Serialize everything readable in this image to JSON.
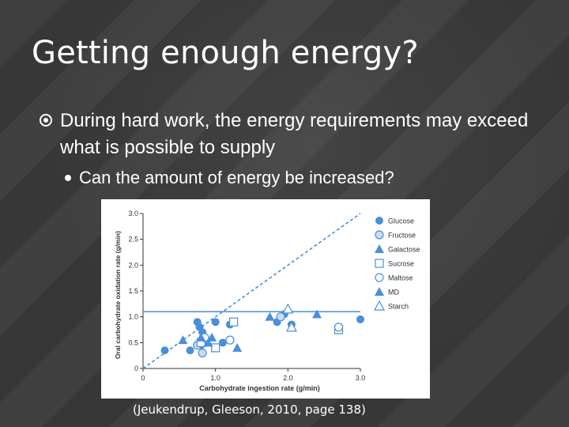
{
  "slide": {
    "title": "Getting enough energy?",
    "bullet1": "During hard work, the energy requirements may exceed what is possible to supply",
    "bullet2": "Can the amount of energy be increased?",
    "citation": "(Jeukendrup, Gleeson, 2010, page 138)"
  },
  "colors": {
    "background": "#3a3a3a",
    "text": "#ffffff",
    "marker": "#4a8fd8",
    "marker_light": "#c7dcf3",
    "axis": "#333333"
  },
  "chart_data": {
    "type": "scatter",
    "xlabel": "Carbohydrate ingestion rate (g/min)",
    "ylabel": "Oral carbohydrate oxidation rate (g/min)",
    "xlim": [
      0,
      3.0
    ],
    "ylim": [
      0,
      3.0
    ],
    "xticks": [
      "0",
      "1.0",
      "2.0",
      "3.0"
    ],
    "yticks": [
      "0",
      "0.5",
      "1.0",
      "1.5",
      "2.0",
      "2.5",
      "3.0"
    ],
    "grid": false,
    "legend_position": "right",
    "reference_lines": [
      {
        "kind": "identity",
        "style": "dashed",
        "from": [
          0,
          0
        ],
        "to": [
          3.0,
          3.0
        ]
      },
      {
        "kind": "horizontal",
        "style": "solid",
        "y": 1.1
      }
    ],
    "series": [
      {
        "name": "Glucose",
        "marker": "circle-filled",
        "points": [
          [
            0.3,
            0.35
          ],
          [
            0.75,
            0.9
          ],
          [
            0.78,
            0.8
          ],
          [
            0.82,
            0.7
          ],
          [
            0.85,
            0.55
          ],
          [
            0.8,
            0.45
          ],
          [
            0.65,
            0.35
          ],
          [
            1.0,
            0.9
          ],
          [
            1.2,
            0.85
          ],
          [
            1.1,
            0.5
          ],
          [
            1.85,
            0.9
          ],
          [
            1.95,
            1.05
          ],
          [
            2.05,
            0.85
          ],
          [
            3.0,
            0.95
          ]
        ]
      },
      {
        "name": "Fructose",
        "marker": "circle-open-filled",
        "points": [
          [
            0.75,
            0.45
          ],
          [
            0.82,
            0.3
          ],
          [
            1.2,
            0.55
          ],
          [
            1.9,
            1.0
          ]
        ]
      },
      {
        "name": "Galactose",
        "marker": "triangle-filled",
        "points": [
          [
            0.55,
            0.55
          ],
          [
            0.95,
            0.6
          ],
          [
            1.3,
            0.4
          ],
          [
            1.75,
            1.0
          ],
          [
            2.4,
            1.05
          ]
        ]
      },
      {
        "name": "Sucrose",
        "marker": "square-open",
        "points": [
          [
            0.8,
            0.5
          ],
          [
            1.0,
            0.4
          ],
          [
            1.25,
            0.9
          ],
          [
            2.7,
            0.75
          ]
        ]
      },
      {
        "name": "Maltose",
        "marker": "circle-open",
        "points": [
          [
            0.85,
            0.6
          ],
          [
            1.2,
            0.55
          ],
          [
            2.7,
            0.8
          ]
        ]
      },
      {
        "name": "MD",
        "marker": "triangle-filled",
        "points": [
          [
            0.8,
            0.6
          ],
          [
            0.9,
            0.5
          ]
        ]
      },
      {
        "name": "Starch",
        "marker": "triangle-open",
        "points": [
          [
            2.0,
            1.15
          ],
          [
            2.05,
            0.8
          ]
        ]
      }
    ]
  }
}
